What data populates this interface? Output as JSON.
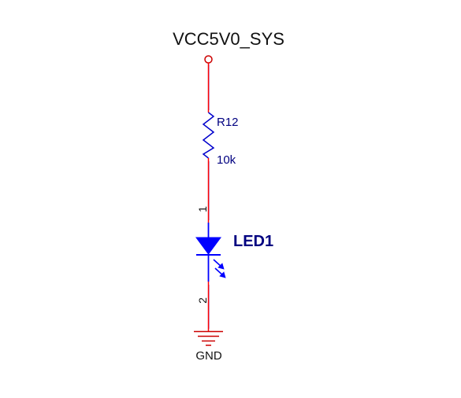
{
  "schematic": {
    "power_net": "VCC5V0_SYS",
    "resistor": {
      "designator": "R12",
      "value": "10k"
    },
    "led": {
      "designator": "LED1",
      "pin1": "1",
      "pin2": "2"
    },
    "ground_label": "GND",
    "colors": {
      "wire": "#ff0000",
      "component": "#0000cc",
      "led_body": "#0000ff",
      "net_label": "#000000",
      "designator": "#000080"
    }
  }
}
